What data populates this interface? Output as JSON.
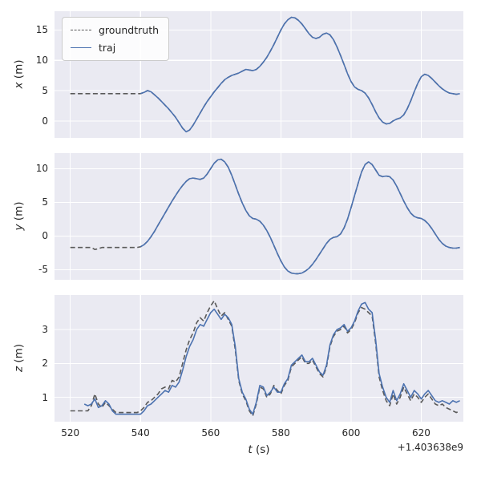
{
  "figure": {
    "background_color": "#ffffff",
    "axes_background": "#eaeaf2",
    "grid_color": "#ffffff",
    "xlabel_var": "t",
    "xlabel_unit": "(s)",
    "offset_text": "+1.403638e9",
    "xticks": [
      520,
      540,
      560,
      580,
      600,
      620
    ],
    "xlim": [
      515.5,
      632
    ],
    "legend": [
      {
        "label": "groundtruth",
        "color": "#5a5a5a",
        "dash": true
      },
      {
        "label": "traj",
        "color": "#4c72b0",
        "dash": false
      }
    ]
  },
  "chart_data": [
    {
      "type": "line",
      "ylabel_var": "x",
      "ylabel_unit": "(m)",
      "yticks": [
        0,
        5,
        10,
        15
      ],
      "ylim": [
        -2.8,
        18.1
      ],
      "series": [
        {
          "name": "groundtruth",
          "color": "#5a5a5a",
          "dash": true,
          "t_start": 520,
          "t_step": 1,
          "values": [
            4.5,
            4.5,
            4.5,
            4.5,
            4.5,
            4.5,
            4.5,
            4.5,
            4.5,
            4.5,
            4.5,
            4.5,
            4.5,
            4.5,
            4.5,
            4.5,
            4.5,
            4.5,
            4.5,
            4.5,
            4.5,
            4.7,
            5.0,
            4.8,
            4.3,
            3.8,
            3.2,
            2.6,
            2.0,
            1.3,
            0.6,
            -0.3,
            -1.2,
            -1.8,
            -1.5,
            -0.7,
            0.3,
            1.3,
            2.3,
            3.2,
            4.0,
            4.8,
            5.5,
            6.2,
            6.8,
            7.2,
            7.5,
            7.7,
            7.9,
            8.2,
            8.5,
            8.4,
            8.3,
            8.5,
            9.0,
            9.7,
            10.5,
            11.5,
            12.6,
            13.8,
            15.0,
            16.0,
            16.7,
            17.1,
            17.0,
            16.6,
            16.0,
            15.2,
            14.4,
            13.8,
            13.6,
            13.8,
            14.3,
            14.5,
            14.2,
            13.4,
            12.2,
            10.8,
            9.3,
            7.8,
            6.5,
            5.6,
            5.2,
            5.0,
            4.6,
            3.8,
            2.7,
            1.5,
            0.5,
            -0.2,
            -0.5,
            -0.4,
            0.0,
            0.3,
            0.5,
            1.0,
            2.0,
            3.3,
            4.8,
            6.2,
            7.3,
            7.7,
            7.5,
            7.0,
            6.4,
            5.8,
            5.3,
            4.9,
            4.6,
            4.5,
            4.4,
            4.5
          ]
        },
        {
          "name": "traj",
          "color": "#4c72b0",
          "dash": false,
          "t_start": 540,
          "t_step": 1,
          "values": [
            4.5,
            4.7,
            5.0,
            4.8,
            4.3,
            3.8,
            3.2,
            2.6,
            2.0,
            1.3,
            0.6,
            -0.3,
            -1.2,
            -1.8,
            -1.5,
            -0.7,
            0.3,
            1.3,
            2.3,
            3.2,
            4.0,
            4.8,
            5.5,
            6.2,
            6.8,
            7.2,
            7.5,
            7.7,
            7.9,
            8.2,
            8.5,
            8.4,
            8.3,
            8.5,
            9.0,
            9.7,
            10.5,
            11.5,
            12.6,
            13.8,
            15.0,
            16.0,
            16.7,
            17.1,
            17.0,
            16.6,
            16.0,
            15.2,
            14.4,
            13.8,
            13.6,
            13.8,
            14.3,
            14.5,
            14.2,
            13.4,
            12.2,
            10.8,
            9.3,
            7.8,
            6.5,
            5.6,
            5.2,
            5.0,
            4.6,
            3.8,
            2.7,
            1.5,
            0.5,
            -0.2,
            -0.5,
            -0.4,
            0.0,
            0.3,
            0.5,
            1.0,
            2.0,
            3.3,
            4.8,
            6.2,
            7.3,
            7.7,
            7.5,
            7.0,
            6.4,
            5.8,
            5.3,
            4.9,
            4.6,
            4.5,
            4.4,
            4.5
          ]
        }
      ]
    },
    {
      "type": "line",
      "ylabel_var": "y",
      "ylabel_unit": "(m)",
      "yticks": [
        -5,
        0,
        5,
        10
      ],
      "ylim": [
        -6.5,
        12.3
      ],
      "series": [
        {
          "name": "groundtruth",
          "color": "#5a5a5a",
          "dash": true,
          "t_start": 520,
          "t_step": 1,
          "values": [
            -1.7,
            -1.7,
            -1.7,
            -1.7,
            -1.7,
            -1.7,
            -1.7,
            -2.0,
            -1.9,
            -1.7,
            -1.7,
            -1.7,
            -1.7,
            -1.7,
            -1.7,
            -1.7,
            -1.7,
            -1.7,
            -1.7,
            -1.7,
            -1.6,
            -1.3,
            -0.8,
            -0.1,
            0.7,
            1.6,
            2.5,
            3.4,
            4.3,
            5.2,
            6.0,
            6.8,
            7.5,
            8.1,
            8.5,
            8.6,
            8.5,
            8.4,
            8.6,
            9.2,
            10.0,
            10.8,
            11.3,
            11.4,
            11.0,
            10.2,
            9.0,
            7.6,
            6.2,
            4.9,
            3.8,
            3.0,
            2.6,
            2.5,
            2.2,
            1.6,
            0.8,
            -0.2,
            -1.4,
            -2.6,
            -3.7,
            -4.6,
            -5.2,
            -5.5,
            -5.6,
            -5.6,
            -5.5,
            -5.2,
            -4.8,
            -4.2,
            -3.5,
            -2.7,
            -1.9,
            -1.1,
            -0.5,
            -0.2,
            -0.1,
            0.3,
            1.2,
            2.5,
            4.2,
            6.0,
            7.8,
            9.5,
            10.6,
            11.0,
            10.6,
            9.8,
            9.0,
            8.8,
            8.9,
            8.8,
            8.3,
            7.4,
            6.3,
            5.2,
            4.2,
            3.4,
            2.9,
            2.7,
            2.6,
            2.3,
            1.8,
            1.1,
            0.3,
            -0.5,
            -1.1,
            -1.5,
            -1.7,
            -1.8,
            -1.8,
            -1.7
          ]
        },
        {
          "name": "traj",
          "color": "#4c72b0",
          "dash": false,
          "t_start": 540,
          "t_step": 1,
          "values": [
            -1.6,
            -1.3,
            -0.8,
            -0.1,
            0.7,
            1.6,
            2.5,
            3.4,
            4.3,
            5.2,
            6.0,
            6.8,
            7.5,
            8.1,
            8.5,
            8.6,
            8.5,
            8.4,
            8.6,
            9.2,
            10.0,
            10.8,
            11.3,
            11.4,
            11.0,
            10.2,
            9.0,
            7.6,
            6.2,
            4.9,
            3.8,
            3.0,
            2.6,
            2.5,
            2.2,
            1.6,
            0.8,
            -0.2,
            -1.4,
            -2.6,
            -3.7,
            -4.6,
            -5.2,
            -5.5,
            -5.6,
            -5.6,
            -5.5,
            -5.2,
            -4.8,
            -4.2,
            -3.5,
            -2.7,
            -1.9,
            -1.1,
            -0.5,
            -0.2,
            -0.1,
            0.3,
            1.2,
            2.5,
            4.2,
            6.0,
            7.8,
            9.5,
            10.6,
            11.0,
            10.6,
            9.8,
            9.0,
            8.8,
            8.9,
            8.8,
            8.3,
            7.4,
            6.3,
            5.2,
            4.2,
            3.4,
            2.9,
            2.7,
            2.6,
            2.3,
            1.8,
            1.1,
            0.3,
            -0.5,
            -1.1,
            -1.5,
            -1.7,
            -1.8,
            -1.8,
            -1.7
          ]
        }
      ]
    },
    {
      "type": "line",
      "ylabel_var": "z",
      "ylabel_unit": "(m)",
      "yticks": [
        1,
        2,
        3
      ],
      "ylim": [
        0.28,
        4.02
      ],
      "series": [
        {
          "name": "groundtruth",
          "color": "#5a5a5a",
          "dash": true,
          "t_start": 520,
          "t_step": 1,
          "values": [
            0.6,
            0.6,
            0.6,
            0.6,
            0.6,
            0.6,
            0.75,
            1.1,
            0.8,
            0.7,
            0.85,
            0.75,
            0.65,
            0.55,
            0.55,
            0.55,
            0.55,
            0.55,
            0.55,
            0.55,
            0.6,
            0.7,
            0.85,
            0.9,
            1.0,
            1.1,
            1.25,
            1.3,
            1.25,
            1.5,
            1.45,
            1.6,
            2.0,
            2.4,
            2.7,
            2.9,
            3.2,
            3.35,
            3.25,
            3.5,
            3.7,
            3.85,
            3.6,
            3.4,
            3.5,
            3.3,
            3.1,
            2.4,
            1.5,
            1.1,
            0.9,
            0.6,
            0.45,
            0.8,
            1.3,
            1.25,
            1.0,
            1.1,
            1.35,
            1.2,
            1.1,
            1.35,
            1.5,
            1.9,
            2.0,
            2.1,
            2.2,
            2.0,
            2.0,
            2.1,
            1.9,
            1.7,
            1.6,
            1.9,
            2.5,
            2.8,
            2.95,
            3.0,
            3.1,
            2.9,
            3.0,
            3.2,
            3.5,
            3.65,
            3.6,
            3.5,
            3.4,
            2.6,
            1.6,
            1.2,
            0.9,
            0.75,
            1.1,
            0.8,
            1.0,
            1.3,
            1.1,
            0.9,
            1.1,
            1.0,
            0.85,
            1.0,
            1.1,
            0.95,
            0.8,
            0.75,
            0.8,
            0.7,
            0.65,
            0.6,
            0.55,
            0.6
          ]
        },
        {
          "name": "traj",
          "color": "#4c72b0",
          "dash": false,
          "t_start": 524,
          "t_step": 1,
          "values": [
            0.8,
            0.75,
            0.8,
            0.95,
            0.7,
            0.75,
            0.9,
            0.8,
            0.6,
            0.5,
            0.5,
            0.5,
            0.5,
            0.5,
            0.5,
            0.5,
            0.5,
            0.6,
            0.75,
            0.8,
            0.9,
            1.0,
            1.1,
            1.2,
            1.15,
            1.35,
            1.3,
            1.45,
            1.8,
            2.2,
            2.5,
            2.7,
            3.0,
            3.15,
            3.1,
            3.3,
            3.5,
            3.6,
            3.45,
            3.3,
            3.45,
            3.35,
            3.15,
            2.5,
            1.55,
            1.15,
            0.95,
            0.65,
            0.5,
            0.85,
            1.35,
            1.3,
            1.05,
            1.15,
            1.3,
            1.15,
            1.15,
            1.4,
            1.55,
            1.95,
            2.05,
            2.15,
            2.25,
            2.05,
            2.05,
            2.15,
            1.95,
            1.75,
            1.65,
            1.95,
            2.55,
            2.85,
            3.0,
            3.05,
            3.15,
            2.95,
            3.05,
            3.25,
            3.55,
            3.75,
            3.8,
            3.6,
            3.5,
            2.7,
            1.7,
            1.3,
            1.0,
            0.85,
            1.2,
            0.9,
            1.1,
            1.4,
            1.2,
            1.0,
            1.2,
            1.1,
            0.95,
            1.1,
            1.2,
            1.05,
            0.9,
            0.85,
            0.9,
            0.85,
            0.8,
            0.9,
            0.85,
            0.9
          ]
        }
      ]
    }
  ]
}
